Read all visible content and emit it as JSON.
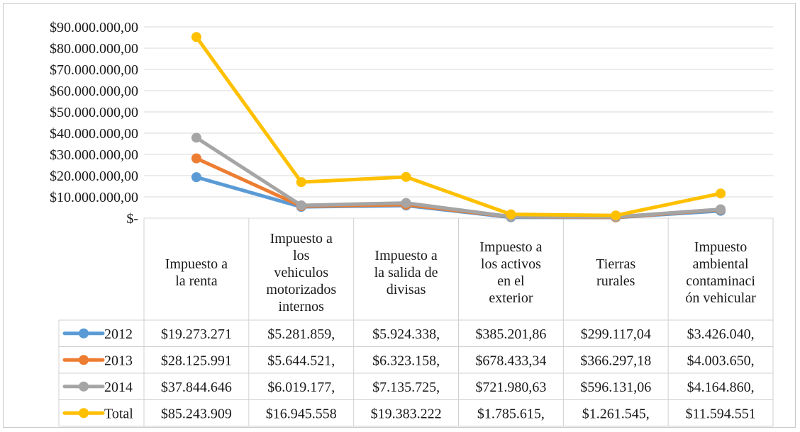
{
  "chart_data": {
    "type": "line",
    "title": "",
    "xlabel": "",
    "ylabel": "",
    "ylim": [
      0,
      90000000
    ],
    "y_tick_labels": [
      "$-",
      "$10.000.000,00",
      "$20.000.000,00",
      "$30.000.000,00",
      "$40.000.000,00",
      "$50.000.000,00",
      "$60.000.000,00",
      "$70.000.000,00",
      "$80.000.000,00",
      "$90.000.000,00"
    ],
    "y_tick_values": [
      0,
      10000000,
      20000000,
      30000000,
      40000000,
      50000000,
      60000000,
      70000000,
      80000000,
      90000000
    ],
    "grid": true,
    "legend": "data-table",
    "categories": [
      [
        "Impuesto a",
        "la renta"
      ],
      [
        "Impuesto a",
        "los",
        "vehiculos",
        "motorizados",
        "internos"
      ],
      [
        "Impuesto a",
        "la salida de",
        "divisas"
      ],
      [
        "Impuesto a",
        "los activos",
        "en el",
        "exterior"
      ],
      [
        "Tierras",
        "rurales"
      ],
      [
        "Impuesto",
        "ambiental",
        "contaminaci",
        "ón vehicular"
      ]
    ],
    "series": [
      {
        "name": "2012",
        "color": "#5b9bd5",
        "values": [
          19273271,
          5281859,
          5924338,
          385201.86,
          299117.04,
          3426040
        ],
        "labels": [
          "$19.273.271",
          "$5.281.859,",
          "$5.924.338,",
          "$385.201,86",
          "$299.117,04",
          "$3.426.040,"
        ]
      },
      {
        "name": "2013",
        "color": "#ed7d31",
        "values": [
          28125991,
          5644521,
          6323158,
          678433.34,
          366297.18,
          4003650
        ],
        "labels": [
          "$28.125.991",
          "$5.644.521,",
          "$6.323.158,",
          "$678.433,34",
          "$366.297,18",
          "$4.003.650,"
        ]
      },
      {
        "name": "2014",
        "color": "#a5a5a5",
        "values": [
          37844646,
          6019177,
          7135725,
          721980.63,
          596131.06,
          4164860
        ],
        "labels": [
          "$37.844.646",
          "$6.019.177,",
          "$7.135.725,",
          "$721.980,63",
          "$596.131,06",
          "$4.164.860,"
        ]
      },
      {
        "name": "Total",
        "color": "#ffc000",
        "values": [
          85243909,
          16945558,
          19383222,
          1785615,
          1261545,
          11594551
        ],
        "labels": [
          "$85.243.909",
          "$16.945.558",
          "$19.383.222",
          "$1.785.615,",
          "$1.261.545,",
          "$11.594.551"
        ]
      }
    ]
  }
}
